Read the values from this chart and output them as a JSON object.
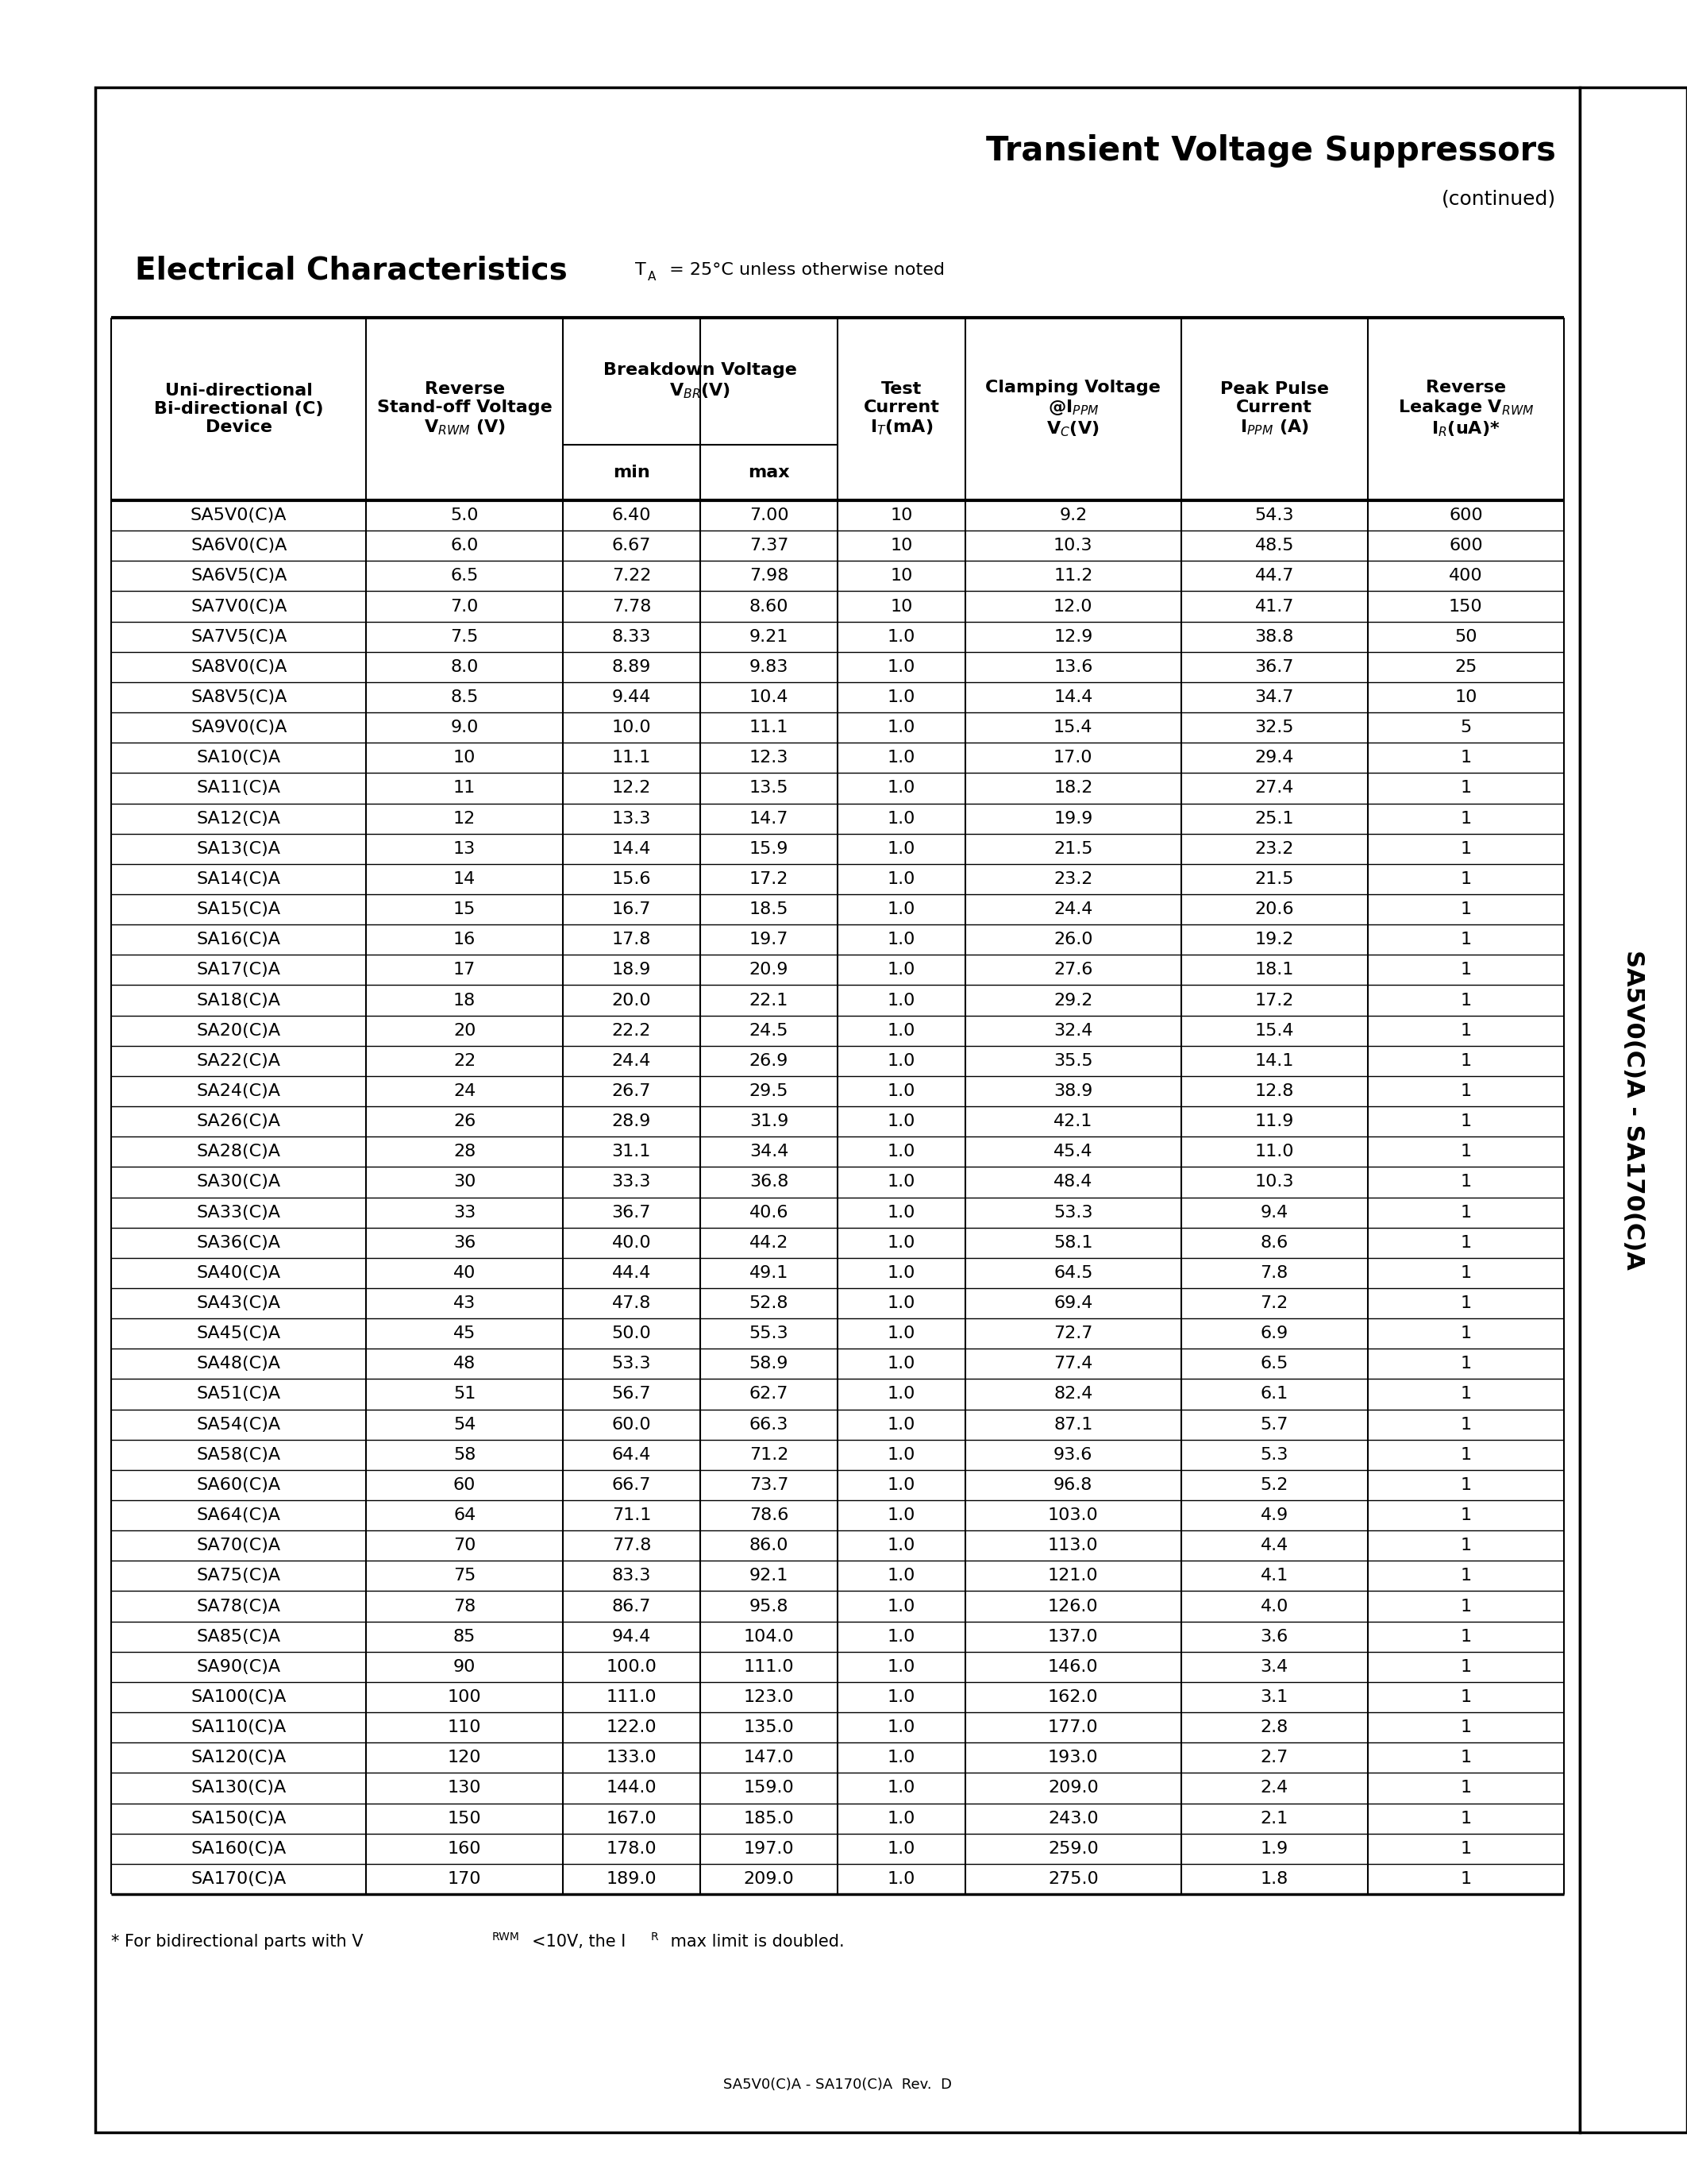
{
  "title": "Transient Voltage Suppressors",
  "subtitle": "(continued)",
  "section_title": "Electrical Characteristics",
  "temp_note": "T_A = 25°C unless otherwise noted",
  "side_text": "SA5V0(C)A - SA170(C)A",
  "footer_text": "SA5V0(C)A - SA170(C)A  Rev.  D",
  "footnote": "* For bidirectional parts with V",
  "footnote2": "<10V, the I",
  "footnote3": " max limit is doubled.",
  "col_header_line1": [
    "Uni-directional",
    "Reverse",
    "Breakdown Voltage",
    "Test",
    "Clamping Voltage",
    "Peak Pulse",
    "Reverse"
  ],
  "col_header_line2": [
    "Bi-directional (C)",
    "Stand-off Voltage",
    "V_BR(V)",
    "Current",
    "@I_PPM",
    "Current",
    "Leakage V_RWM"
  ],
  "col_header_line3": [
    "Device",
    "V_RWM (V)",
    "",
    "I_T(mA)",
    "V_C(V)",
    "I_PPM (A)",
    "I_R(uA)*"
  ],
  "col_header_minmax": [
    "min",
    "max"
  ],
  "rows": [
    [
      "SA5V0(C)A",
      "5.0",
      "6.40",
      "7.00",
      "10",
      "9.2",
      "54.3",
      "600"
    ],
    [
      "SA6V0(C)A",
      "6.0",
      "6.67",
      "7.37",
      "10",
      "10.3",
      "48.5",
      "600"
    ],
    [
      "SA6V5(C)A",
      "6.5",
      "7.22",
      "7.98",
      "10",
      "11.2",
      "44.7",
      "400"
    ],
    [
      "SA7V0(C)A",
      "7.0",
      "7.78",
      "8.60",
      "10",
      "12.0",
      "41.7",
      "150"
    ],
    [
      "SA7V5(C)A",
      "7.5",
      "8.33",
      "9.21",
      "1.0",
      "12.9",
      "38.8",
      "50"
    ],
    [
      "SA8V0(C)A",
      "8.0",
      "8.89",
      "9.83",
      "1.0",
      "13.6",
      "36.7",
      "25"
    ],
    [
      "SA8V5(C)A",
      "8.5",
      "9.44",
      "10.4",
      "1.0",
      "14.4",
      "34.7",
      "10"
    ],
    [
      "SA9V0(C)A",
      "9.0",
      "10.0",
      "11.1",
      "1.0",
      "15.4",
      "32.5",
      "5"
    ],
    [
      "SA10(C)A",
      "10",
      "11.1",
      "12.3",
      "1.0",
      "17.0",
      "29.4",
      "1"
    ],
    [
      "SA11(C)A",
      "11",
      "12.2",
      "13.5",
      "1.0",
      "18.2",
      "27.4",
      "1"
    ],
    [
      "SA12(C)A",
      "12",
      "13.3",
      "14.7",
      "1.0",
      "19.9",
      "25.1",
      "1"
    ],
    [
      "SA13(C)A",
      "13",
      "14.4",
      "15.9",
      "1.0",
      "21.5",
      "23.2",
      "1"
    ],
    [
      "SA14(C)A",
      "14",
      "15.6",
      "17.2",
      "1.0",
      "23.2",
      "21.5",
      "1"
    ],
    [
      "SA15(C)A",
      "15",
      "16.7",
      "18.5",
      "1.0",
      "24.4",
      "20.6",
      "1"
    ],
    [
      "SA16(C)A",
      "16",
      "17.8",
      "19.7",
      "1.0",
      "26.0",
      "19.2",
      "1"
    ],
    [
      "SA17(C)A",
      "17",
      "18.9",
      "20.9",
      "1.0",
      "27.6",
      "18.1",
      "1"
    ],
    [
      "SA18(C)A",
      "18",
      "20.0",
      "22.1",
      "1.0",
      "29.2",
      "17.2",
      "1"
    ],
    [
      "SA20(C)A",
      "20",
      "22.2",
      "24.5",
      "1.0",
      "32.4",
      "15.4",
      "1"
    ],
    [
      "SA22(C)A",
      "22",
      "24.4",
      "26.9",
      "1.0",
      "35.5",
      "14.1",
      "1"
    ],
    [
      "SA24(C)A",
      "24",
      "26.7",
      "29.5",
      "1.0",
      "38.9",
      "12.8",
      "1"
    ],
    [
      "SA26(C)A",
      "26",
      "28.9",
      "31.9",
      "1.0",
      "42.1",
      "11.9",
      "1"
    ],
    [
      "SA28(C)A",
      "28",
      "31.1",
      "34.4",
      "1.0",
      "45.4",
      "11.0",
      "1"
    ],
    [
      "SA30(C)A",
      "30",
      "33.3",
      "36.8",
      "1.0",
      "48.4",
      "10.3",
      "1"
    ],
    [
      "SA33(C)A",
      "33",
      "36.7",
      "40.6",
      "1.0",
      "53.3",
      "9.4",
      "1"
    ],
    [
      "SA36(C)A",
      "36",
      "40.0",
      "44.2",
      "1.0",
      "58.1",
      "8.6",
      "1"
    ],
    [
      "SA40(C)A",
      "40",
      "44.4",
      "49.1",
      "1.0",
      "64.5",
      "7.8",
      "1"
    ],
    [
      "SA43(C)A",
      "43",
      "47.8",
      "52.8",
      "1.0",
      "69.4",
      "7.2",
      "1"
    ],
    [
      "SA45(C)A",
      "45",
      "50.0",
      "55.3",
      "1.0",
      "72.7",
      "6.9",
      "1"
    ],
    [
      "SA48(C)A",
      "48",
      "53.3",
      "58.9",
      "1.0",
      "77.4",
      "6.5",
      "1"
    ],
    [
      "SA51(C)A",
      "51",
      "56.7",
      "62.7",
      "1.0",
      "82.4",
      "6.1",
      "1"
    ],
    [
      "SA54(C)A",
      "54",
      "60.0",
      "66.3",
      "1.0",
      "87.1",
      "5.7",
      "1"
    ],
    [
      "SA58(C)A",
      "58",
      "64.4",
      "71.2",
      "1.0",
      "93.6",
      "5.3",
      "1"
    ],
    [
      "SA60(C)A",
      "60",
      "66.7",
      "73.7",
      "1.0",
      "96.8",
      "5.2",
      "1"
    ],
    [
      "SA64(C)A",
      "64",
      "71.1",
      "78.6",
      "1.0",
      "103.0",
      "4.9",
      "1"
    ],
    [
      "SA70(C)A",
      "70",
      "77.8",
      "86.0",
      "1.0",
      "113.0",
      "4.4",
      "1"
    ],
    [
      "SA75(C)A",
      "75",
      "83.3",
      "92.1",
      "1.0",
      "121.0",
      "4.1",
      "1"
    ],
    [
      "SA78(C)A",
      "78",
      "86.7",
      "95.8",
      "1.0",
      "126.0",
      "4.0",
      "1"
    ],
    [
      "SA85(C)A",
      "85",
      "94.4",
      "104.0",
      "1.0",
      "137.0",
      "3.6",
      "1"
    ],
    [
      "SA90(C)A",
      "90",
      "100.0",
      "111.0",
      "1.0",
      "146.0",
      "3.4",
      "1"
    ],
    [
      "SA100(C)A",
      "100",
      "111.0",
      "123.0",
      "1.0",
      "162.0",
      "3.1",
      "1"
    ],
    [
      "SA110(C)A",
      "110",
      "122.0",
      "135.0",
      "1.0",
      "177.0",
      "2.8",
      "1"
    ],
    [
      "SA120(C)A",
      "120",
      "133.0",
      "147.0",
      "1.0",
      "193.0",
      "2.7",
      "1"
    ],
    [
      "SA130(C)A",
      "130",
      "144.0",
      "159.0",
      "1.0",
      "209.0",
      "2.4",
      "1"
    ],
    [
      "SA150(C)A",
      "150",
      "167.0",
      "185.0",
      "1.0",
      "243.0",
      "2.1",
      "1"
    ],
    [
      "SA160(C)A",
      "160",
      "178.0",
      "197.0",
      "1.0",
      "259.0",
      "1.9",
      "1"
    ],
    [
      "SA170(C)A",
      "170",
      "189.0",
      "209.0",
      "1.0",
      "275.0",
      "1.8",
      "1"
    ]
  ]
}
